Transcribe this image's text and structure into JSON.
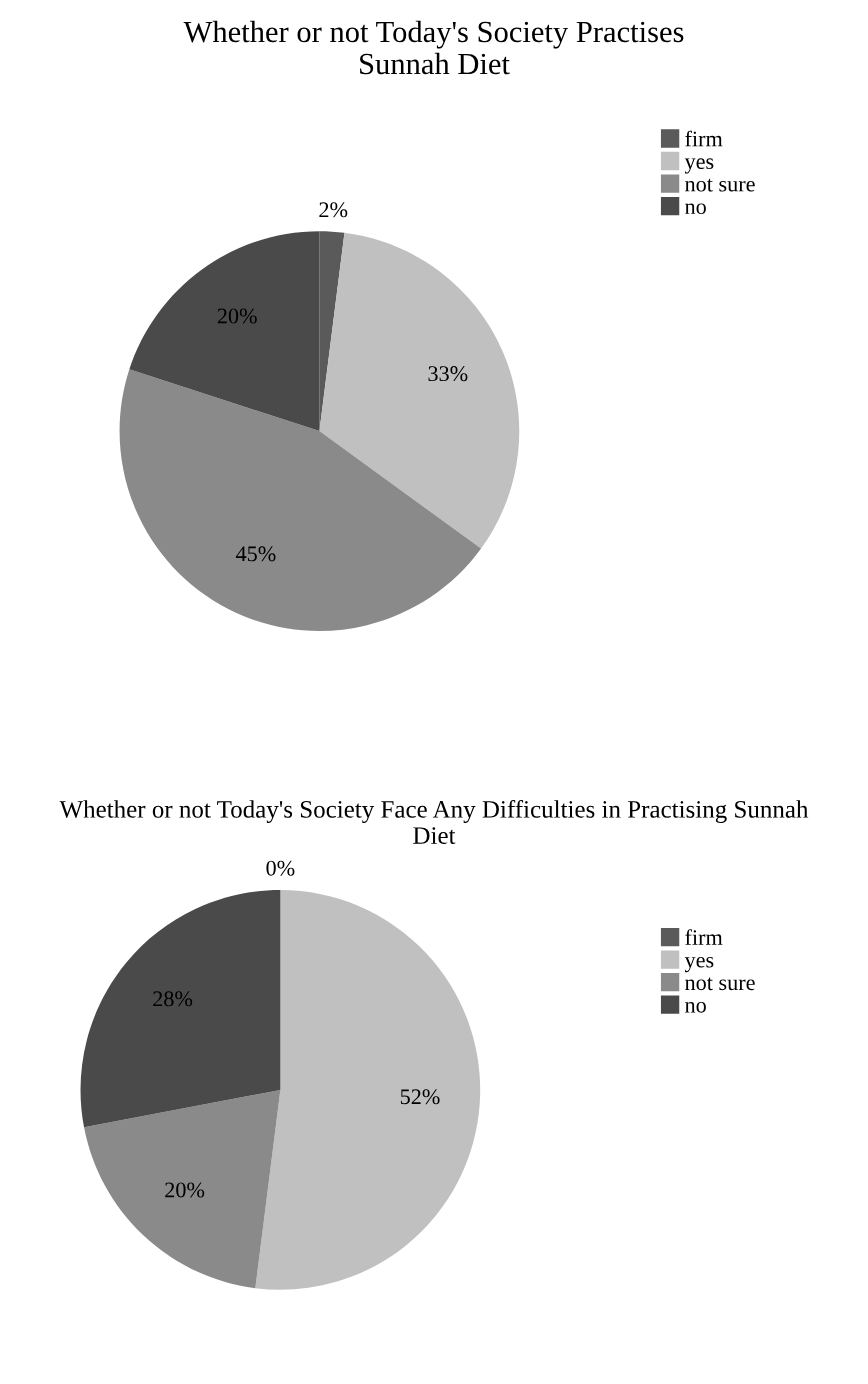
{
  "chart_data": [
    {
      "type": "pie",
      "title": "Whether or not Today's Society Practises Sunnah Diet",
      "categories": [
        "firm",
        "yes",
        "not sure",
        "no"
      ],
      "values": [
        2,
        33,
        45,
        20
      ],
      "colors": [
        "#5a5a5a",
        "#c0c0c0",
        "#8a8a8a",
        "#4a4a4a"
      ],
      "legend": "top right",
      "value_labels": [
        "2%",
        "33%",
        "45%",
        "20%"
      ]
    },
    {
      "type": "pie",
      "title": "Whether or not Today's Society Face Any Difficulties in Practising Sunnah Diet",
      "categories": [
        "firm",
        "yes",
        "not sure",
        "no"
      ],
      "values": [
        0,
        52,
        20,
        28
      ],
      "colors": [
        "#5a5a5a",
        "#c0c0c0",
        "#8a8a8a",
        "#4a4a4a"
      ],
      "legend": "top right",
      "value_labels": [
        "0%",
        "52%",
        "20%",
        "28%"
      ]
    }
  ]
}
